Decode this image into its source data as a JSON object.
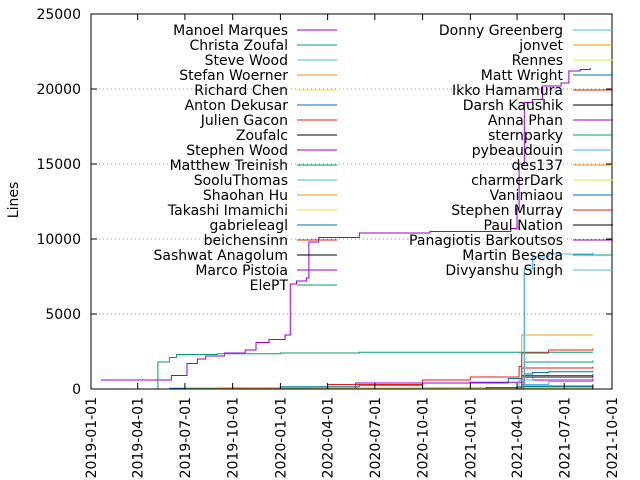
{
  "chart_data": {
    "type": "line",
    "title": "",
    "xlabel": "",
    "ylabel": "Lines",
    "xlim": [
      "2019-01-01",
      "2021-10-01"
    ],
    "ylim": [
      0,
      25000
    ],
    "yticks": [
      0,
      5000,
      10000,
      15000,
      20000,
      25000
    ],
    "xticks": [
      "2019-01-01",
      "2019-04-01",
      "2019-07-01",
      "2019-10-01",
      "2020-01-01",
      "2020-04-01",
      "2020-07-01",
      "2020-10-01",
      "2021-01-01",
      "2021-04-01",
      "2021-07-01",
      "2021-10-01"
    ],
    "grid": "y-dotted",
    "legend_placement": "top, two columns",
    "series": [
      {
        "name": "Manoel Marques",
        "color": "#9400d3",
        "points": [
          [
            "2019-01-20",
            600
          ],
          [
            "2019-05-10",
            600
          ],
          [
            "2019-06-05",
            900
          ],
          [
            "2019-07-05",
            1700
          ],
          [
            "2019-07-25",
            2000
          ],
          [
            "2019-08-10",
            2200
          ],
          [
            "2019-09-15",
            2400
          ],
          [
            "2019-10-25",
            2600
          ],
          [
            "2019-11-15",
            3100
          ],
          [
            "2019-12-10",
            3300
          ],
          [
            "2020-01-10",
            3600
          ],
          [
            "2020-01-20",
            7000
          ],
          [
            "2020-02-01",
            7200
          ],
          [
            "2020-02-20",
            7400
          ],
          [
            "2020-02-25",
            9800
          ],
          [
            "2020-03-15",
            10100
          ],
          [
            "2020-06-01",
            10400
          ],
          [
            "2020-09-01",
            10400
          ],
          [
            "2020-10-15",
            10500
          ],
          [
            "2021-01-15",
            10500
          ],
          [
            "2021-03-20",
            10700
          ],
          [
            "2021-04-01",
            12000
          ],
          [
            "2021-04-05",
            15000
          ],
          [
            "2021-04-15",
            19100
          ],
          [
            "2021-05-01",
            19300
          ],
          [
            "2021-05-20",
            20200
          ],
          [
            "2021-06-25",
            20400
          ],
          [
            "2021-07-10",
            21200
          ],
          [
            "2021-08-01",
            21300
          ],
          [
            "2021-08-20",
            21400
          ]
        ]
      },
      {
        "name": "Christa Zoufal",
        "color": "#009e73",
        "points": [
          [
            "2019-05-05",
            0
          ],
          [
            "2019-05-10",
            1800
          ],
          [
            "2019-06-01",
            2100
          ],
          [
            "2019-06-15",
            2300
          ],
          [
            "2019-09-01",
            2350
          ],
          [
            "2020-01-01",
            2400
          ],
          [
            "2020-06-01",
            2450
          ],
          [
            "2021-01-01",
            2450
          ],
          [
            "2021-04-01",
            2450
          ],
          [
            "2021-08-25",
            2450
          ]
        ]
      },
      {
        "name": "Steve Wood",
        "color": "#56b4e9",
        "points": [
          [
            "2021-03-25",
            0
          ],
          [
            "2021-04-10",
            300
          ],
          [
            "2021-06-01",
            500
          ],
          [
            "2021-08-25",
            600
          ]
        ]
      },
      {
        "name": "Stefan Woerner",
        "color": "#e69f00",
        "points": [
          [
            "2021-04-01",
            0
          ],
          [
            "2021-04-10",
            3600
          ],
          [
            "2021-08-25",
            3600
          ]
        ]
      },
      {
        "name": "Richard Chen",
        "color": "#f0e442",
        "points": [
          [
            "2021-04-01",
            0
          ],
          [
            "2021-08-25",
            100
          ]
        ]
      },
      {
        "name": "Anton Dekusar",
        "color": "#0072b2",
        "points": [
          [
            "2019-06-01",
            50
          ],
          [
            "2020-01-01",
            150
          ],
          [
            "2020-06-01",
            250
          ],
          [
            "2020-10-01",
            400
          ],
          [
            "2021-03-15",
            700
          ],
          [
            "2021-04-10",
            900
          ],
          [
            "2021-08-25",
            1000
          ]
        ]
      },
      {
        "name": "Julien Gacon",
        "color": "#e51e10",
        "points": [
          [
            "2019-09-01",
            50
          ],
          [
            "2020-04-01",
            300
          ],
          [
            "2020-10-01",
            600
          ],
          [
            "2021-01-01",
            800
          ],
          [
            "2021-04-05",
            1500
          ],
          [
            "2021-04-10",
            2400
          ],
          [
            "2021-06-01",
            2600
          ],
          [
            "2021-08-25",
            2700
          ]
        ]
      },
      {
        "name": "Zoufalc",
        "color": "#000000",
        "points": [
          [
            "2021-04-05",
            0
          ],
          [
            "2021-04-10",
            150
          ],
          [
            "2021-08-25",
            200
          ]
        ]
      },
      {
        "name": "Stephen Wood",
        "color": "#9400d3",
        "points": [
          [
            "2020-05-20",
            0
          ],
          [
            "2020-05-25",
            400
          ],
          [
            "2021-01-01",
            450
          ],
          [
            "2021-04-15",
            600
          ],
          [
            "2021-08-25",
            700
          ]
        ]
      },
      {
        "name": "Matthew Treinish",
        "color": "#009e73",
        "points": [
          [
            "2020-01-01",
            50
          ],
          [
            "2020-10-01",
            100
          ],
          [
            "2021-04-01",
            150
          ],
          [
            "2021-08-25",
            200
          ]
        ]
      },
      {
        "name": "SooluThomas",
        "color": "#56b4e9",
        "points": [
          [
            "2021-04-10",
            0
          ],
          [
            "2021-08-25",
            80
          ]
        ]
      },
      {
        "name": "Shaohan Hu",
        "color": "#e69f00",
        "points": [
          [
            "2020-03-01",
            30
          ],
          [
            "2020-10-01",
            80
          ],
          [
            "2021-08-25",
            100
          ]
        ]
      },
      {
        "name": "Takashi Imamichi",
        "color": "#f0e442",
        "points": [
          [
            "2019-07-01",
            20
          ],
          [
            "2020-06-01",
            80
          ],
          [
            "2021-08-25",
            120
          ]
        ]
      },
      {
        "name": "gabrieleagl",
        "color": "#0072b2",
        "points": [
          [
            "2020-10-01",
            0
          ],
          [
            "2021-04-10",
            200
          ],
          [
            "2021-08-25",
            300
          ]
        ]
      },
      {
        "name": "beichensinn",
        "color": "#e51e10",
        "points": [
          [
            "2020-10-15",
            0
          ],
          [
            "2021-02-01",
            100
          ],
          [
            "2021-04-10",
            1400
          ],
          [
            "2021-08-25",
            1500
          ]
        ]
      },
      {
        "name": "Sashwat Anagolum",
        "color": "#000000",
        "points": [
          [
            "2020-10-01",
            0
          ],
          [
            "2021-08-25",
            60
          ]
        ]
      },
      {
        "name": "Marco Pistoia",
        "color": "#9400d3",
        "points": [
          [
            "2021-04-10",
            0
          ],
          [
            "2021-08-25",
            80
          ]
        ]
      },
      {
        "name": "ElePT",
        "color": "#009e73",
        "points": [
          [
            "2021-04-10",
            0
          ],
          [
            "2021-04-15",
            1800
          ],
          [
            "2021-08-25",
            1900
          ]
        ]
      },
      {
        "name": "Donny Greenberg",
        "color": "#56b4e9",
        "points": [
          [
            "2021-03-20",
            0
          ],
          [
            "2021-04-05",
            600
          ],
          [
            "2021-05-01",
            800
          ],
          [
            "2021-08-25",
            900
          ]
        ]
      },
      {
        "name": "jonvet",
        "color": "#e69f00",
        "points": [
          [
            "2021-04-01",
            0
          ],
          [
            "2021-08-25",
            40
          ]
        ]
      },
      {
        "name": "Rennes",
        "color": "#f0e442",
        "points": [
          [
            "2021-04-01",
            0
          ],
          [
            "2021-08-25",
            30
          ]
        ]
      },
      {
        "name": "Matt Wright",
        "color": "#0072b2",
        "points": [
          [
            "2021-04-10",
            0
          ],
          [
            "2021-04-15",
            1000
          ],
          [
            "2021-05-01",
            1100
          ],
          [
            "2021-06-01",
            1150
          ],
          [
            "2021-08-25",
            1200
          ]
        ]
      },
      {
        "name": "Ikko Hamamura",
        "color": "#e51e10",
        "points": [
          [
            "2021-03-01",
            0
          ],
          [
            "2021-04-10",
            800
          ],
          [
            "2021-08-25",
            900
          ]
        ]
      },
      {
        "name": "Darsh Kaushik",
        "color": "#000000",
        "points": [
          [
            "2021-04-01",
            0
          ],
          [
            "2021-04-15",
            800
          ],
          [
            "2021-08-25",
            850
          ]
        ]
      },
      {
        "name": "Anna Phan",
        "color": "#9400d3",
        "points": [
          [
            "2021-04-01",
            0
          ],
          [
            "2021-08-25",
            50
          ]
        ]
      },
      {
        "name": "sternparky",
        "color": "#009e73",
        "points": [
          [
            "2021-04-01",
            0
          ],
          [
            "2021-08-25",
            40
          ]
        ]
      },
      {
        "name": "pybeaudouin",
        "color": "#56b4e9",
        "points": [
          [
            "2021-04-01",
            0
          ],
          [
            "2021-08-25",
            30
          ]
        ]
      },
      {
        "name": "des137",
        "color": "#e69f00",
        "points": [
          [
            "2021-04-01",
            0
          ],
          [
            "2021-08-25",
            60
          ]
        ]
      },
      {
        "name": "charmerDark",
        "color": "#f0e442",
        "points": [
          [
            "2021-04-01",
            0
          ],
          [
            "2021-08-25",
            20
          ]
        ]
      },
      {
        "name": "Vanimiaou",
        "color": "#0072b2",
        "points": [
          [
            "2021-04-01",
            0
          ],
          [
            "2021-08-25",
            30
          ]
        ]
      },
      {
        "name": "Stephen Murray",
        "color": "#e51e10",
        "points": [
          [
            "2021-04-01",
            0
          ],
          [
            "2021-08-25",
            20
          ]
        ]
      },
      {
        "name": "Paul Nation",
        "color": "#000000",
        "points": [
          [
            "2021-04-01",
            0
          ],
          [
            "2021-08-25",
            300
          ]
        ]
      },
      {
        "name": "Panagiotis Barkoutsos",
        "color": "#9400d3",
        "points": [
          [
            "2021-04-01",
            0
          ],
          [
            "2021-08-25",
            100
          ]
        ]
      },
      {
        "name": "Martin Beseda",
        "color": "#009e73",
        "points": [
          [
            "2021-04-10",
            0
          ],
          [
            "2021-04-15",
            8000
          ],
          [
            "2021-05-01",
            8800
          ],
          [
            "2021-06-01",
            9000
          ],
          [
            "2021-08-25",
            9100
          ]
        ]
      },
      {
        "name": "Divyanshu Singh",
        "color": "#56b4e9",
        "points": [
          [
            "2021-04-10",
            0
          ],
          [
            "2021-04-15",
            8000
          ],
          [
            "2021-05-01",
            8800
          ],
          [
            "2021-06-01",
            9000
          ],
          [
            "2021-08-25",
            9100
          ]
        ]
      }
    ]
  }
}
